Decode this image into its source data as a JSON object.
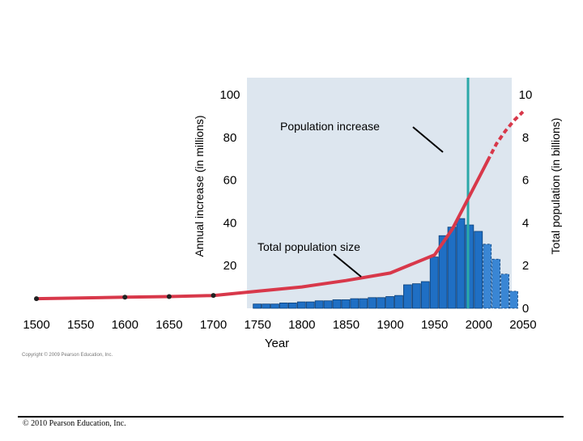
{
  "chart_data": {
    "type": "bar+line",
    "x_ticks": [
      "1500",
      "1550",
      "1600",
      "1650",
      "1700",
      "1750",
      "1800",
      "1850",
      "1900",
      "1950",
      "2000",
      "2050"
    ],
    "xlabel": "Year",
    "ylabel_left": "Annual increase (in millions)",
    "ylabel_right": "Total population (in billions)",
    "left_ticks": [
      "20",
      "40",
      "60",
      "80",
      "100"
    ],
    "right_ticks": [
      "0",
      "2",
      "4",
      "6",
      "8",
      "10"
    ],
    "ylim_left": [
      0,
      100
    ],
    "ylim_right": [
      0,
      10
    ],
    "xlim": [
      1500,
      2060
    ],
    "annotations": {
      "bars": "Population increase",
      "line": "Total population size"
    },
    "copyright_small": "Copyright © 2009 Pearson Education, Inc.",
    "series": [
      {
        "kind": "bar",
        "axis": "left",
        "years": [
          1750,
          1760,
          1770,
          1780,
          1790,
          1800,
          1810,
          1820,
          1830,
          1840,
          1850,
          1860,
          1870,
          1880,
          1890,
          1900,
          1910,
          1920,
          1930,
          1940,
          1950,
          1960,
          1970,
          1980,
          1990,
          2000,
          2010,
          2020,
          2030,
          2040
        ],
        "values": [
          2,
          2,
          2,
          2.5,
          2.5,
          3,
          3,
          3.5,
          3.5,
          4,
          4,
          4.5,
          4.5,
          5,
          5,
          5.5,
          6,
          11,
          11.5,
          12.5,
          24,
          34,
          38,
          42,
          39,
          36,
          30,
          23,
          16,
          8
        ]
      },
      {
        "kind": "line",
        "axis": "right",
        "years": [
          1500,
          1550,
          1600,
          1650,
          1700,
          1750,
          1800,
          1850,
          1900,
          1950,
          1970,
          1990,
          2000,
          2010
        ],
        "values": [
          0.45,
          0.48,
          0.52,
          0.55,
          0.6,
          0.8,
          1.0,
          1.3,
          1.65,
          2.5,
          3.7,
          5.3,
          6.1,
          6.9
        ],
        "projection_years": [
          2010,
          2020,
          2030,
          2040,
          2050
        ],
        "projection_values": [
          6.9,
          7.7,
          8.3,
          8.8,
          9.2
        ]
      }
    ],
    "markers": [
      1500,
      1600,
      1650,
      1700
    ],
    "current_year_line": 2005
  },
  "colors": {
    "bar": "#1f6fc4",
    "bar_projected": "#3a86d4",
    "line": "#d8384a",
    "panel": "#dde6ef",
    "current": "#2aa8a8"
  },
  "footer": "© 2010 Pearson Education, Inc."
}
